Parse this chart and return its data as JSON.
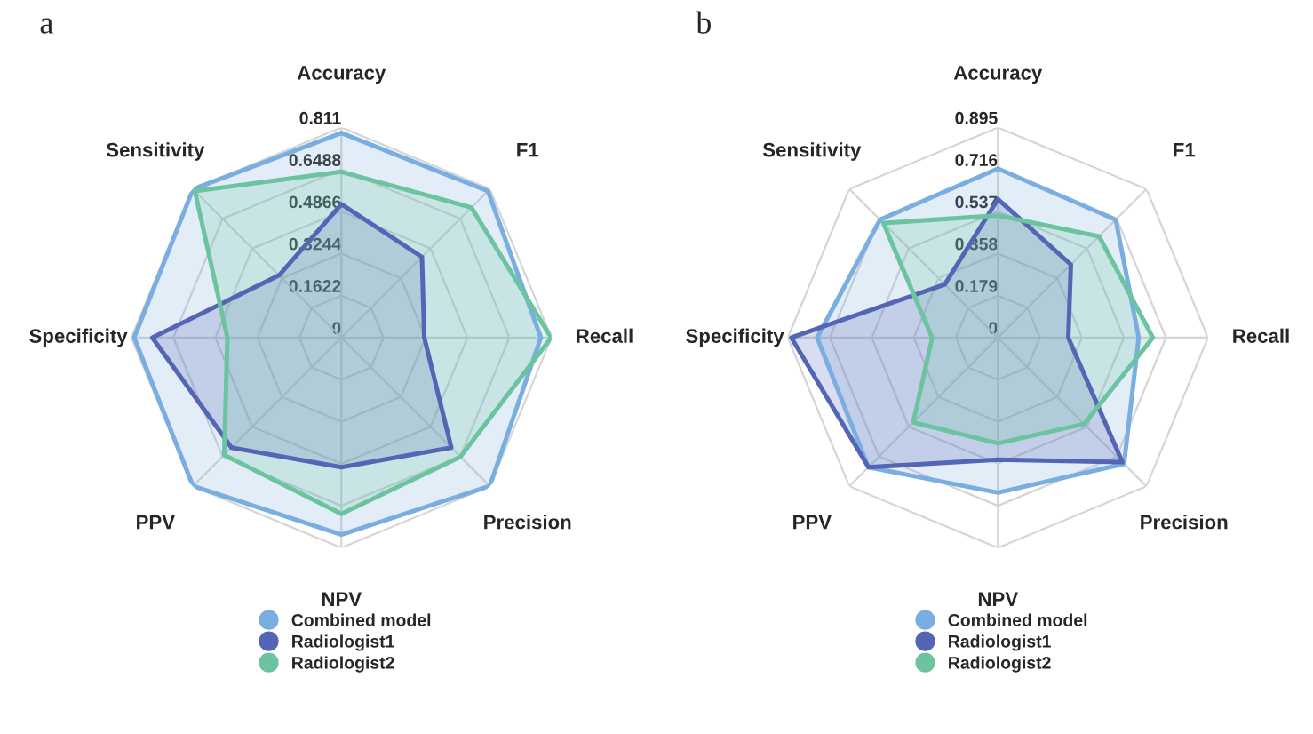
{
  "chart_data": [
    {
      "type": "radar",
      "title": "a",
      "categories": [
        "Accuracy",
        "F1",
        "Recall",
        "Precision",
        "NPV",
        "PPV",
        "Specificity",
        "Sensitivity"
      ],
      "ylim": [
        0,
        0.811
      ],
      "yticks": [
        0,
        0.1622,
        0.3244,
        0.4866,
        0.6488,
        0.811
      ],
      "grid": true,
      "legend": "bottom",
      "marker": "none",
      "series": [
        {
          "name": "Combined model",
          "color": "#7aaee0",
          "values": [
            0.79,
            0.8,
            0.77,
            0.81,
            0.76,
            0.81,
            0.8,
            0.81
          ]
        },
        {
          "name": "Radiologist1",
          "color": "#5565b5",
          "values": [
            0.515,
            0.44,
            0.32,
            0.6,
            0.5,
            0.6,
            0.73,
            0.34
          ]
        },
        {
          "name": "Radiologist2",
          "color": "#6cc3a0",
          "values": [
            0.64,
            0.71,
            0.81,
            0.65,
            0.68,
            0.64,
            0.44,
            0.8
          ]
        }
      ]
    },
    {
      "type": "radar",
      "title": "b",
      "categories": [
        "Accuracy",
        "F1",
        "Recall",
        "Precision",
        "NPV",
        "PPV",
        "Specificity",
        "Sensitivity"
      ],
      "ylim": [
        0,
        0.895
      ],
      "yticks": [
        0,
        0.179,
        0.358,
        0.537,
        0.716,
        0.895
      ],
      "grid": true,
      "legend": "bottom",
      "marker": "none",
      "series": [
        {
          "name": "Combined model",
          "color": "#7aaee0",
          "values": [
            0.72,
            0.71,
            0.6,
            0.76,
            0.66,
            0.78,
            0.77,
            0.71
          ]
        },
        {
          "name": "Radiologist1",
          "color": "#5565b5",
          "values": [
            0.59,
            0.44,
            0.3,
            0.75,
            0.52,
            0.78,
            0.88,
            0.32
          ]
        },
        {
          "name": "Radiologist2",
          "color": "#6cc3a0",
          "values": [
            0.52,
            0.61,
            0.66,
            0.52,
            0.45,
            0.51,
            0.28,
            0.69
          ]
        }
      ]
    }
  ]
}
